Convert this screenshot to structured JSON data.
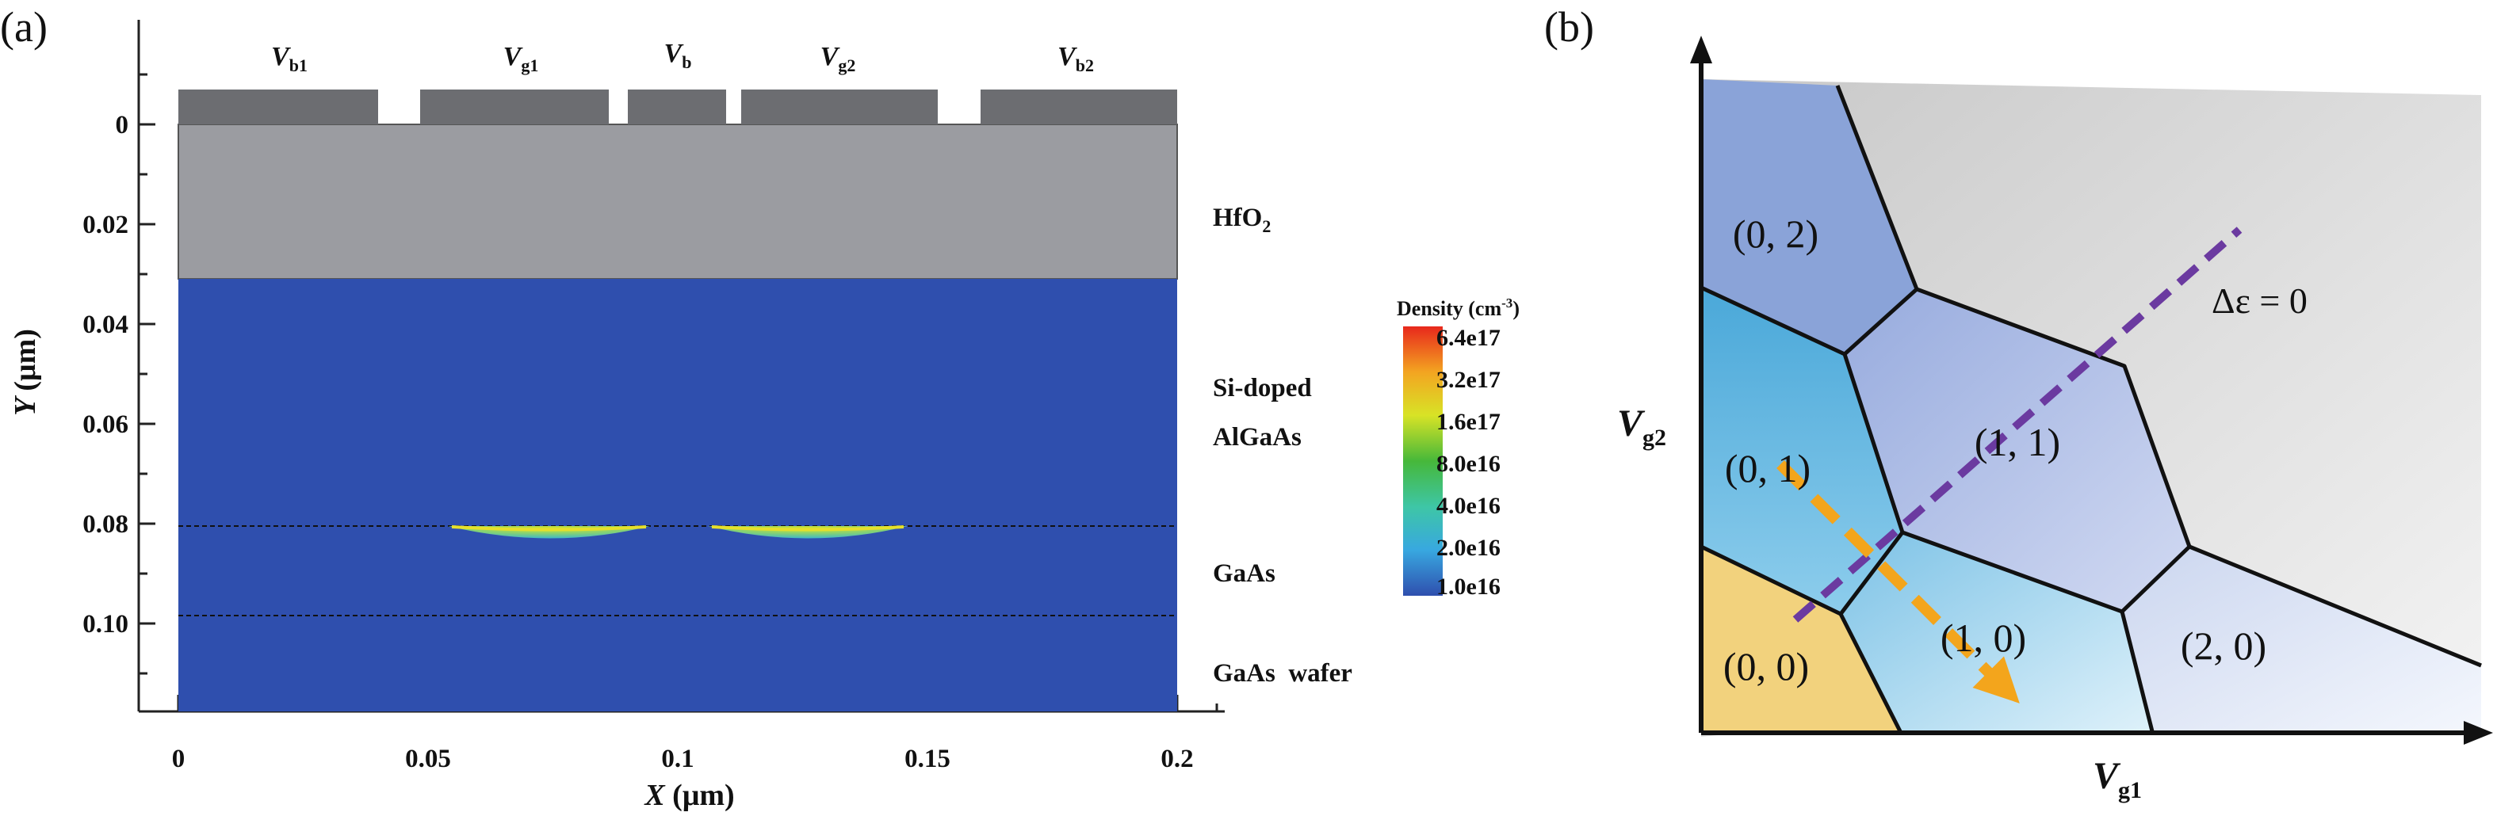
{
  "panel_a": {
    "label": "(a)",
    "gates": [
      {
        "name": "V",
        "sub": "b1"
      },
      {
        "name": "V",
        "sub": "g1"
      },
      {
        "name": "V",
        "sub": "b"
      },
      {
        "name": "V",
        "sub": "g2"
      },
      {
        "name": "V",
        "sub": "b2"
      }
    ],
    "layers": {
      "hfo2": "HfO",
      "hfo2_sub": "2",
      "si_doped_line1": "Si-doped",
      "si_doped_line2": "AlGaAs",
      "gaas": "GaAs",
      "wafer": "GaAs  wafer"
    },
    "y_axis": {
      "title_var": "Y",
      "title_unit": "(μm)",
      "ticks": [
        "0",
        "0.02",
        "0.04",
        "0.06",
        "0.08",
        "0.10"
      ]
    },
    "x_axis": {
      "title_var": "X",
      "title_unit": "(μm)",
      "ticks": [
        "0",
        "0.05",
        "0.1",
        "0.15",
        "0.2"
      ]
    },
    "legend": {
      "title": "Density (cm",
      "title_sup": "-3",
      "title_end": ")",
      "entries": [
        "6.4e17",
        "3.2e17",
        "1.6e17",
        "8.0e16",
        "4.0e16",
        "2.0e16",
        "1.0e16"
      ],
      "colors": [
        "#e8281c",
        "#f3a521",
        "#d8e326",
        "#46b83a",
        "#3ec6a6",
        "#38a8e0",
        "#2f4fae"
      ]
    },
    "colors": {
      "dielectric": "#9b9ca1",
      "gate_metal": "#6c6d71",
      "substrate": "#2f4fae",
      "dot": "#d9e329"
    }
  },
  "panel_b": {
    "label": "(b)",
    "regions": [
      "(0, 2)",
      "(0, 1)",
      "(0, 0)",
      "(1, 1)",
      "(1, 0)",
      "(2, 0)"
    ],
    "annotation": "Δε = 0",
    "x_axis": {
      "var": "V",
      "sub": "g1"
    },
    "y_axis": {
      "var": "V",
      "sub": "g2"
    },
    "colors": {
      "r02": "#8aa3d8",
      "r01": "#4aa8d9",
      "r00": "#f2d27d",
      "r11": "#a8b8e3",
      "r10": "#9fd3ea",
      "r20": "#dfe6f5",
      "detuning_line": "#6b3aa0",
      "arrow": "#f3a51c"
    }
  }
}
